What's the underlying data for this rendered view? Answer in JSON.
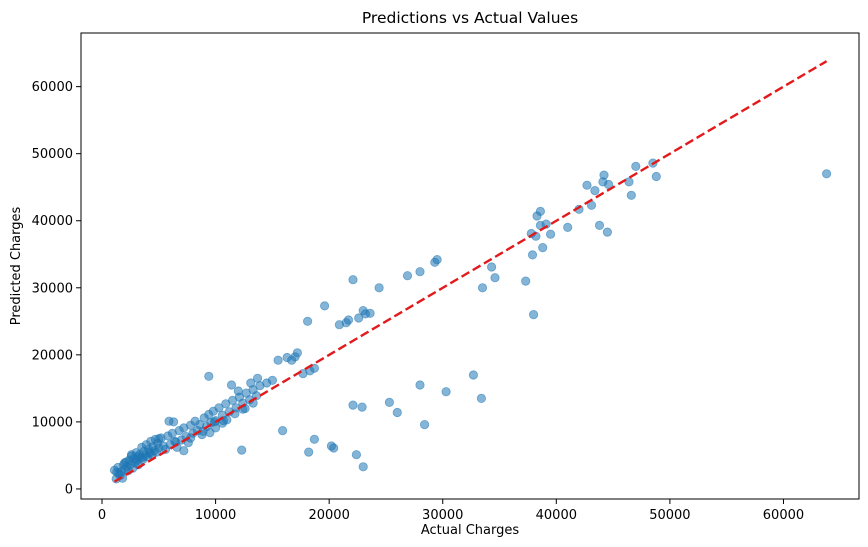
{
  "chart_data": {
    "type": "scatter",
    "title": "Predictions vs Actual Values",
    "xlabel": "Actual Charges",
    "ylabel": "Predicted Charges",
    "xlim": [
      -1850,
      66650
    ],
    "ylim": [
      -1500,
      68000
    ],
    "xticks": [
      0,
      10000,
      20000,
      30000,
      40000,
      50000,
      60000
    ],
    "yticks": [
      0,
      10000,
      20000,
      30000,
      40000,
      50000,
      60000
    ],
    "grid": false,
    "point_color": "#1f77b4",
    "point_alpha": 0.55,
    "reference_line": {
      "style": "dashed",
      "color": "#e31a1c",
      "x": [
        1100,
        63800
      ],
      "y": [
        1100,
        63800
      ]
    },
    "series": [
      {
        "points": [
          [
            1100,
            2800
          ],
          [
            1250,
            1500
          ],
          [
            1400,
            3200
          ],
          [
            1500,
            2300
          ],
          [
            1600,
            2000
          ],
          [
            1700,
            2600
          ],
          [
            1800,
            1600
          ],
          [
            1900,
            3600
          ],
          [
            2000,
            2900
          ],
          [
            2100,
            4000
          ],
          [
            2200,
            3300
          ],
          [
            2300,
            2700
          ],
          [
            2400,
            4300
          ],
          [
            2500,
            3600
          ],
          [
            2600,
            4900
          ],
          [
            2700,
            3100
          ],
          [
            2800,
            4500
          ],
          [
            2900,
            3900
          ],
          [
            3000,
            5400
          ],
          [
            3100,
            4200
          ],
          [
            3200,
            3600
          ],
          [
            3300,
            5100
          ],
          [
            3400,
            4700
          ],
          [
            3500,
            6200
          ],
          [
            3600,
            4400
          ],
          [
            3700,
            5600
          ],
          [
            3800,
            5000
          ],
          [
            3900,
            6600
          ],
          [
            4000,
            4800
          ],
          [
            4100,
            5900
          ],
          [
            4200,
            5300
          ],
          [
            4300,
            7100
          ],
          [
            4400,
            5100
          ],
          [
            4500,
            6300
          ],
          [
            4600,
            5700
          ],
          [
            4700,
            7400
          ],
          [
            4800,
            5500
          ],
          [
            4900,
            6800
          ],
          [
            5000,
            6100
          ],
          [
            5200,
            7600
          ],
          [
            5400,
            6400
          ],
          [
            5600,
            5900
          ],
          [
            5800,
            7900
          ],
          [
            6000,
            6600
          ],
          [
            6200,
            8300
          ],
          [
            6400,
            7100
          ],
          [
            6600,
            6200
          ],
          [
            6800,
            8700
          ],
          [
            7000,
            7300
          ],
          [
            7200,
            9100
          ],
          [
            7400,
            7800
          ],
          [
            7600,
            6900
          ],
          [
            7800,
            9500
          ],
          [
            8000,
            8300
          ],
          [
            8200,
            10100
          ],
          [
            8400,
            8700
          ],
          [
            8600,
            9600
          ],
          [
            8800,
            8100
          ],
          [
            9000,
            10600
          ],
          [
            9200,
            9300
          ],
          [
            9400,
            11100
          ],
          [
            9600,
            9900
          ],
          [
            9800,
            11600
          ],
          [
            10000,
            10200
          ],
          [
            10300,
            12100
          ],
          [
            10600,
            11000
          ],
          [
            10900,
            12700
          ],
          [
            11200,
            11500
          ],
          [
            11500,
            13200
          ],
          [
            11800,
            12100
          ],
          [
            12100,
            13700
          ],
          [
            12400,
            12800
          ],
          [
            12700,
            14300
          ],
          [
            13000,
            13300
          ],
          [
            13300,
            14800
          ],
          [
            13600,
            13900
          ],
          [
            13900,
            15400
          ],
          [
            5900,
            10100
          ],
          [
            6300,
            10000
          ],
          [
            8900,
            8600
          ],
          [
            9400,
            16800
          ],
          [
            9500,
            8400
          ],
          [
            10000,
            9100
          ],
          [
            10600,
            9800
          ],
          [
            11000,
            10300
          ],
          [
            11400,
            15500
          ],
          [
            12000,
            14600
          ],
          [
            12400,
            11900
          ],
          [
            13100,
            15800
          ],
          [
            13700,
            16500
          ],
          [
            14500,
            15800
          ],
          [
            15000,
            16200
          ],
          [
            15500,
            19200
          ],
          [
            16300,
            19600
          ],
          [
            16700,
            19200
          ],
          [
            17000,
            19700
          ],
          [
            17200,
            20300
          ],
          [
            17700,
            17200
          ],
          [
            18100,
            25000
          ],
          [
            18300,
            17600
          ],
          [
            18700,
            18000
          ],
          [
            19600,
            27300
          ],
          [
            20900,
            24500
          ],
          [
            21500,
            24800
          ],
          [
            21700,
            25200
          ],
          [
            22100,
            31200
          ],
          [
            22600,
            25500
          ],
          [
            23000,
            26600
          ],
          [
            23200,
            26100
          ],
          [
            23600,
            26200
          ],
          [
            24400,
            30000
          ],
          [
            26900,
            31800
          ],
          [
            28000,
            32400
          ],
          [
            29300,
            33800
          ],
          [
            29500,
            34200
          ],
          [
            33500,
            30000
          ],
          [
            34300,
            33100
          ],
          [
            34600,
            31500
          ],
          [
            37300,
            31000
          ],
          [
            37900,
            34900
          ],
          [
            38000,
            26000
          ],
          [
            37800,
            38100
          ],
          [
            38200,
            37700
          ],
          [
            38300,
            40700
          ],
          [
            38600,
            41400
          ],
          [
            38800,
            36000
          ],
          [
            38600,
            39300
          ],
          [
            39100,
            39500
          ],
          [
            39500,
            38000
          ],
          [
            41000,
            39000
          ],
          [
            42000,
            41700
          ],
          [
            42700,
            45300
          ],
          [
            43100,
            42300
          ],
          [
            43400,
            44500
          ],
          [
            43800,
            39300
          ],
          [
            44100,
            45800
          ],
          [
            44200,
            46800
          ],
          [
            44500,
            38300
          ],
          [
            44600,
            45400
          ],
          [
            46400,
            45800
          ],
          [
            46600,
            43800
          ],
          [
            47000,
            48100
          ],
          [
            48500,
            48600
          ],
          [
            48800,
            46600
          ],
          [
            63800,
            47000
          ],
          [
            15900,
            8700
          ],
          [
            18200,
            5500
          ],
          [
            18700,
            7400
          ],
          [
            20200,
            6400
          ],
          [
            20400,
            6100
          ],
          [
            22100,
            12500
          ],
          [
            22400,
            5100
          ],
          [
            22900,
            12200
          ],
          [
            23000,
            3300
          ],
          [
            25300,
            12900
          ],
          [
            26000,
            11400
          ],
          [
            28000,
            15500
          ],
          [
            28400,
            9600
          ],
          [
            30300,
            14500
          ],
          [
            32700,
            17000
          ],
          [
            33400,
            13500
          ],
          [
            7200,
            5700
          ],
          [
            12300,
            5800
          ],
          [
            4200,
            5500
          ],
          [
            3200,
            4900
          ],
          [
            2600,
            5100
          ],
          [
            2000,
            3900
          ],
          [
            1300,
            2500
          ],
          [
            3000,
            4400
          ],
          [
            3600,
            4700
          ],
          [
            5000,
            7500
          ],
          [
            6500,
            7000
          ],
          [
            7800,
            7600
          ],
          [
            9900,
            10000
          ],
          [
            10700,
            10200
          ],
          [
            11700,
            11200
          ],
          [
            12600,
            12000
          ],
          [
            13300,
            12800
          ]
        ]
      }
    ]
  }
}
